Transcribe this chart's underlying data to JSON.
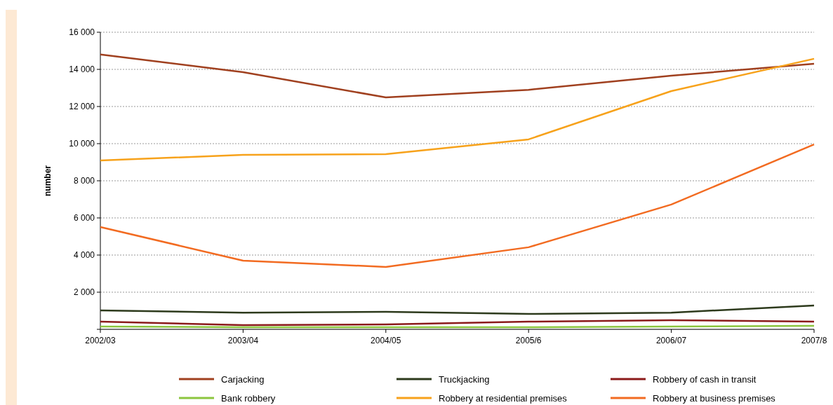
{
  "chart_data": {
    "type": "line",
    "ylabel": "number",
    "categories": [
      "2002/03",
      "2003/04",
      "2004/05",
      "2005/6",
      "2006/07",
      "2007/8"
    ],
    "ylim": [
      0,
      16000
    ],
    "yticks": [
      {
        "value": 0,
        "label": null
      },
      {
        "value": 2000,
        "label": "2 000"
      },
      {
        "value": 4000,
        "label": "4 000"
      },
      {
        "value": 6000,
        "label": "6 000"
      },
      {
        "value": 8000,
        "label": "8 000"
      },
      {
        "value": 10000,
        "label": "10 000"
      },
      {
        "value": 12000,
        "label": "12 000"
      },
      {
        "value": 14000,
        "label": "14 000"
      },
      {
        "value": 16000,
        "label": "16 000"
      }
    ],
    "grid": "y",
    "legend": "bottom",
    "marker": "none",
    "line_style": "solid",
    "series": [
      {
        "name": "Carjacking",
        "color": "#a0401f",
        "values": [
          14800,
          13850,
          12490,
          12900,
          13660,
          14300
        ]
      },
      {
        "name": "Truckjacking",
        "color": "#2d3a1c",
        "values": [
          1020,
          900,
          940,
          830,
          900,
          1280
        ]
      },
      {
        "name": "Robbery of cash in transit",
        "color": "#8b1a1a",
        "values": [
          415,
          230,
          260,
          415,
          490,
          415
        ]
      },
      {
        "name": "Bank robbery",
        "color": "#8cc63f",
        "values": [
          150,
          110,
          110,
          110,
          150,
          190
        ]
      },
      {
        "name": "Robbery at residential premises",
        "color": "#f7a21b",
        "values": [
          9090,
          9400,
          9430,
          10230,
          12830,
          14570
        ]
      },
      {
        "name": "Robbery at business premises",
        "color": "#f26b21",
        "values": [
          5510,
          3700,
          3360,
          4420,
          6720,
          9960
        ]
      }
    ]
  }
}
